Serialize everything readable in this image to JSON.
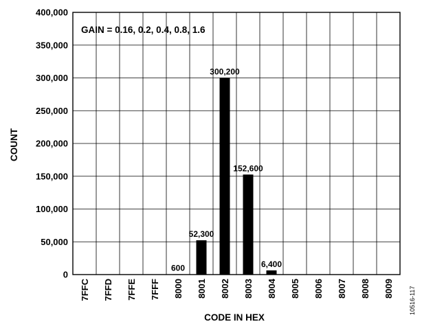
{
  "chart_data": {
    "type": "bar",
    "title": "",
    "annotation": "GAIN = 0.16, 0.2, 0.4, 0.8, 1.6",
    "xlabel": "CODE IN HEX",
    "ylabel": "COUNT",
    "figure_id": "10516-117",
    "categories": [
      "7FFC",
      "7FFD",
      "7FFE",
      "7FFF",
      "8000",
      "8001",
      "8002",
      "8003",
      "8004",
      "8005",
      "8006",
      "8007",
      "8008",
      "8009"
    ],
    "values": [
      0,
      0,
      0,
      0,
      600,
      52300,
      300200,
      152600,
      6400,
      0,
      0,
      0,
      0,
      0
    ],
    "data_labels": [
      "",
      "",
      "",
      "",
      "600",
      "52,300",
      "300,200",
      "152,600",
      "6,400",
      "",
      "",
      "",
      "",
      ""
    ],
    "ylim": [
      0,
      400000
    ],
    "yticks": [
      0,
      50000,
      100000,
      150000,
      200000,
      250000,
      300000,
      350000,
      400000
    ],
    "ytick_labels": [
      "0",
      "50,000",
      "100,000",
      "150,000",
      "200,000",
      "250,000",
      "300,000",
      "350,000",
      "400,000"
    ],
    "grid": true,
    "bar_color": "#000000",
    "grid_color": "#000000"
  }
}
